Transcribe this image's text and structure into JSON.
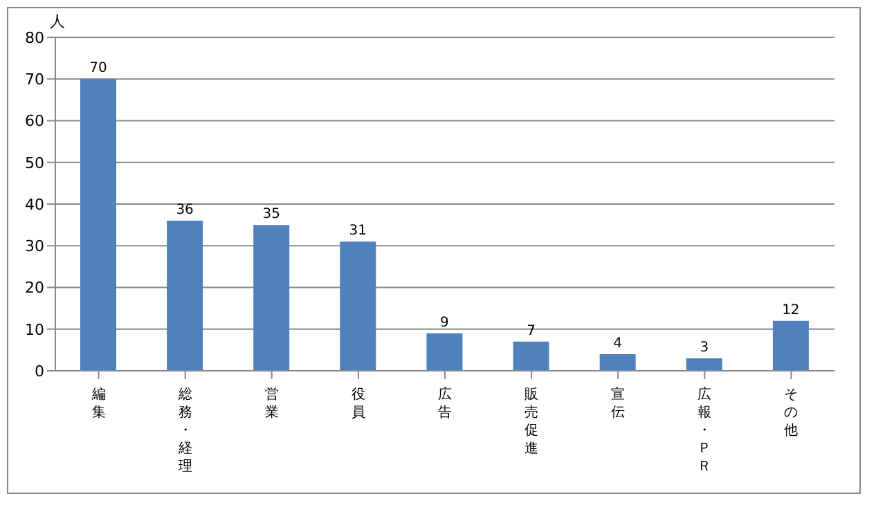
{
  "chart_data": {
    "type": "bar",
    "ylabel": "人",
    "categories": [
      "編集",
      "総務・経理",
      "営業",
      "役員",
      "広告",
      "販売促進",
      "宣伝",
      "広報・ＰＲ",
      "その他"
    ],
    "values": [
      70,
      36,
      35,
      31,
      9,
      7,
      4,
      3,
      12
    ],
    "color": "#4f81bd",
    "ylim": [
      0,
      80
    ],
    "yticks": [
      0,
      10,
      20,
      30,
      40,
      50,
      60,
      70,
      80
    ],
    "grid": "y",
    "data_labels": true
  }
}
